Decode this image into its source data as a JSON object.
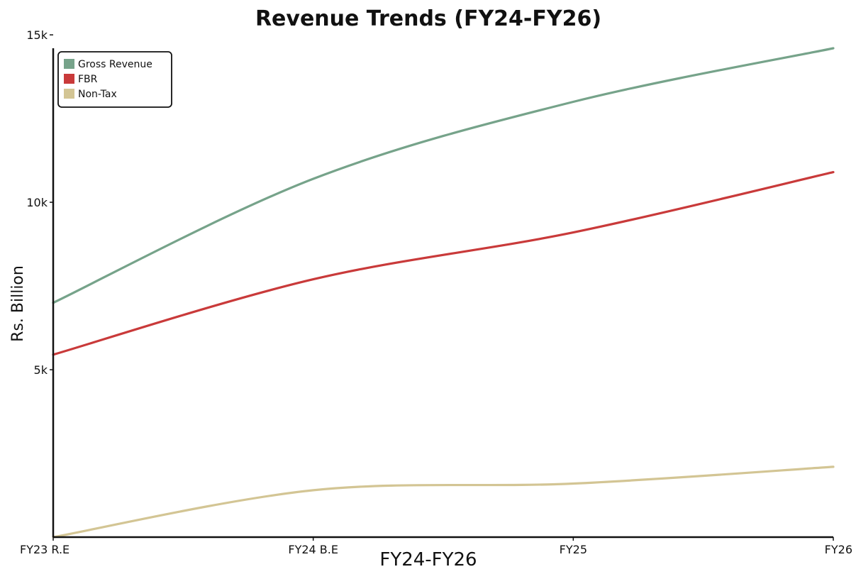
{
  "chart_data": {
    "type": "line",
    "title": "Revenue Trends (FY24-FY26)",
    "xlabel": "FY24-FY26",
    "ylabel": "Rs. Billion",
    "categories": [
      "FY23 R.E",
      "FY24 B.E",
      "FY25",
      "FY26"
    ],
    "y_ticks": [
      {
        "value": 5000,
        "label": "5k"
      },
      {
        "value": 10000,
        "label": "10k"
      },
      {
        "value": 15000,
        "label": "15k"
      }
    ],
    "ylim": [
      0,
      14600
    ],
    "grid": false,
    "legend_position": "top-left",
    "series": [
      {
        "name": "Gross Revenue",
        "color": "#76a38a",
        "values": [
          7000,
          10700,
          13000,
          14600
        ]
      },
      {
        "name": "FBR",
        "color": "#c93a3a",
        "values": [
          5450,
          7700,
          9100,
          10900
        ]
      },
      {
        "name": "Non-Tax",
        "color": "#d3c594",
        "values": [
          0,
          1400,
          1600,
          2100
        ]
      }
    ]
  }
}
